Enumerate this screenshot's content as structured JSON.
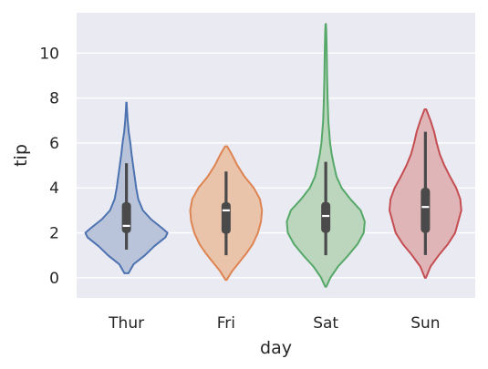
{
  "chart_data": {
    "type": "violin",
    "xlabel": "day",
    "ylabel": "tip",
    "ylim": [
      -0.9,
      11.8
    ],
    "yticks": [
      0,
      2,
      4,
      6,
      8,
      10
    ],
    "grid": true,
    "categories": [
      "Thur",
      "Fri",
      "Sat",
      "Sun"
    ],
    "colors": {
      "background": "#eaeaf2",
      "grid": "#ffffff",
      "box": "#4a4a4a",
      "median": "#ffffff",
      "series": [
        "#4c72b0",
        "#dd8452",
        "#55a868",
        "#c44e52"
      ],
      "fills": [
        "#b9c4da",
        "#e9c4ab",
        "#bcd6bd",
        "#dfb5b7"
      ]
    },
    "series": [
      {
        "category": "Thur",
        "min": 1.25,
        "q1": 1.99,
        "median": 2.31,
        "q3": 3.36,
        "max": 5.1,
        "violin": [
          [
            0.2,
            0.2
          ],
          [
            0.6,
            0.7
          ],
          [
            1.0,
            1.8
          ],
          [
            1.4,
            2.7
          ],
          [
            1.8,
            3.8
          ],
          [
            2.0,
            4.0
          ],
          [
            2.2,
            3.5
          ],
          [
            2.6,
            2.4
          ],
          [
            3.0,
            1.6
          ],
          [
            3.5,
            1.15
          ],
          [
            4.0,
            0.95
          ],
          [
            4.5,
            0.8
          ],
          [
            5.0,
            0.65
          ],
          [
            5.5,
            0.5
          ],
          [
            6.0,
            0.38
          ],
          [
            6.5,
            0.22
          ],
          [
            7.0,
            0.12
          ],
          [
            7.5,
            0.05
          ],
          [
            7.8,
            0.02
          ]
        ]
      },
      {
        "category": "Fri",
        "min": 1.0,
        "q1": 1.96,
        "median": 3.0,
        "q3": 3.36,
        "max": 4.73,
        "violin": [
          [
            -0.1,
            0.05
          ],
          [
            0.3,
            0.6
          ],
          [
            0.7,
            1.3
          ],
          [
            1.1,
            2.0
          ],
          [
            1.5,
            2.6
          ],
          [
            2.0,
            3.1
          ],
          [
            2.5,
            3.4
          ],
          [
            3.0,
            3.5
          ],
          [
            3.5,
            3.3
          ],
          [
            4.0,
            2.7
          ],
          [
            4.5,
            1.8
          ],
          [
            5.0,
            1.1
          ],
          [
            5.5,
            0.55
          ],
          [
            5.85,
            0.1
          ]
        ]
      },
      {
        "category": "Sat",
        "min": 1.0,
        "q1": 2.0,
        "median": 2.75,
        "q3": 3.37,
        "max": 5.16,
        "violin": [
          [
            -0.4,
            0.05
          ],
          [
            0.0,
            0.45
          ],
          [
            0.5,
            1.2
          ],
          [
            1.0,
            2.2
          ],
          [
            1.5,
            3.1
          ],
          [
            2.0,
            3.7
          ],
          [
            2.5,
            3.8
          ],
          [
            3.0,
            3.4
          ],
          [
            3.5,
            2.4
          ],
          [
            4.0,
            1.55
          ],
          [
            4.5,
            1.05
          ],
          [
            5.0,
            0.8
          ],
          [
            5.5,
            0.58
          ],
          [
            6.0,
            0.42
          ],
          [
            7.0,
            0.25
          ],
          [
            8.0,
            0.18
          ],
          [
            9.0,
            0.13
          ],
          [
            10.0,
            0.1
          ],
          [
            11.0,
            0.05
          ],
          [
            11.3,
            0.02
          ]
        ]
      },
      {
        "category": "Sun",
        "min": 1.01,
        "q1": 2.0,
        "median": 3.15,
        "q3": 4.0,
        "max": 6.5,
        "violin": [
          [
            0.0,
            0.05
          ],
          [
            0.5,
            0.5
          ],
          [
            1.0,
            1.3
          ],
          [
            1.5,
            2.2
          ],
          [
            2.0,
            2.9
          ],
          [
            2.5,
            3.2
          ],
          [
            3.0,
            3.5
          ],
          [
            3.5,
            3.4
          ],
          [
            4.0,
            3.0
          ],
          [
            4.5,
            2.4
          ],
          [
            5.0,
            1.85
          ],
          [
            5.5,
            1.4
          ],
          [
            6.0,
            1.1
          ],
          [
            6.5,
            0.85
          ],
          [
            7.0,
            0.5
          ],
          [
            7.5,
            0.08
          ]
        ]
      }
    ]
  }
}
